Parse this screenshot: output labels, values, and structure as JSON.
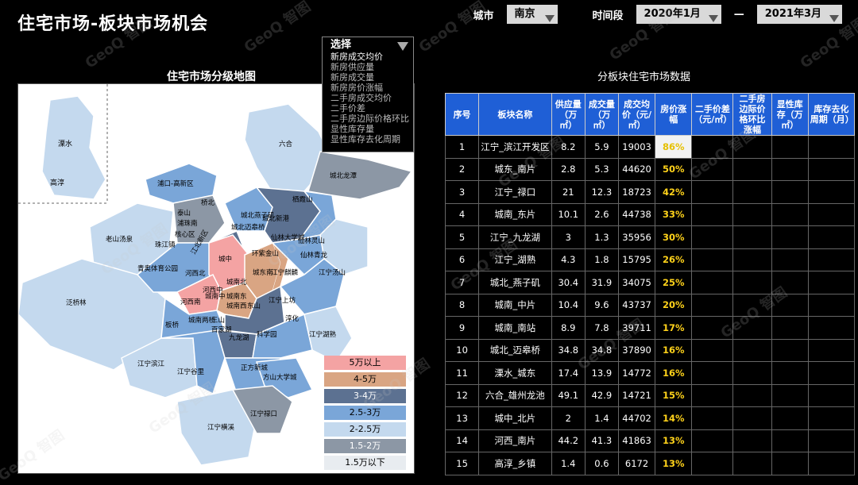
{
  "title": "住宅市场-板块市场机会",
  "filters": {
    "city_label": "城市",
    "city": "南京",
    "period_label": "时间段",
    "start": "2020年1月",
    "dash": "—",
    "end": "2021年3月"
  },
  "map": {
    "title": "住宅市场分级地图",
    "inset": {
      "a": "溧水",
      "b": "高淳"
    },
    "districts": [
      "六合",
      "城北龙潭",
      "浦口-高新区",
      "泰山",
      "桥北",
      "浦珠南",
      "核心区",
      "珠江镇",
      "老山汤泉",
      "青奥体育公园",
      "泛桥林",
      "城北迈皋桥",
      "城北燕子矶",
      "城北新港",
      "栖霞山",
      "仙林大学城",
      "仙林灵山",
      "仙林青龙",
      "环紫金山",
      "城中",
      "河西北",
      "河西中",
      "城南北",
      "城东南",
      "河西南",
      "城南中",
      "城南东",
      "城南西",
      "东山",
      "江宁麒麟",
      "江宁上坊",
      "江宁汤山",
      "板桥",
      "城南两桥",
      "三山",
      "百家湖",
      "九龙湖",
      "科学园",
      "淳化",
      "江宁湖熟",
      "江宁滨江",
      "江宁谷里",
      "正方新城",
      "方山大学城",
      "江宁横溪",
      "江宁禄口",
      "江北新区"
    ]
  },
  "select_panel": {
    "header": "选择",
    "options": [
      "新房成交均价",
      "新房供应量",
      "新房成交量",
      "新房房价涨幅",
      "二手房成交均价",
      "二手价差",
      "二手房边际价格环比",
      "显性库存量",
      "显性库存去化周期"
    ],
    "selected": 0
  },
  "legend": [
    {
      "label": "5万以上",
      "color": "#f4a3a3",
      "text": "#000"
    },
    {
      "label": "4-5万",
      "color": "#d9a583",
      "text": "#000"
    },
    {
      "label": "3-4万",
      "color": "#5c7191",
      "text": "#fff"
    },
    {
      "label": "2.5-3万",
      "color": "#7aa6d8",
      "text": "#000"
    },
    {
      "label": "2-2.5万",
      "color": "#c4d9ee",
      "text": "#000"
    },
    {
      "label": "1.5-2万",
      "color": "#8c97a5",
      "text": "#fff"
    },
    {
      "label": "1.5万以下",
      "color": "#e8ecf0",
      "text": "#000"
    }
  ],
  "table": {
    "title": "分板块住宅市场数据",
    "headers": [
      "序号",
      "板块名称",
      "供应量（万㎡）",
      "成交量（万㎡）",
      "成交均价（元/㎡）",
      "房价涨幅",
      "二手价差（元/㎡）",
      "二手房边际价格环比涨幅",
      "显性库存（万㎡）",
      "库存去化周期（月）"
    ],
    "rows": [
      [
        "1",
        "江宁_滨江开发区",
        "8.2",
        "5.9",
        "19003",
        "86%"
      ],
      [
        "2",
        "城东_南片",
        "2.8",
        "5.3",
        "44620",
        "50%"
      ],
      [
        "3",
        "江宁_禄口",
        "21",
        "12.3",
        "18723",
        "42%"
      ],
      [
        "4",
        "城南_东片",
        "10.1",
        "2.6",
        "44738",
        "33%"
      ],
      [
        "5",
        "江宁_九龙湖",
        "3",
        "1.3",
        "35956",
        "30%"
      ],
      [
        "6",
        "江宁_湖熟",
        "4.3",
        "1.8",
        "15795",
        "26%"
      ],
      [
        "7",
        "城北_燕子矶",
        "30.4",
        "31.9",
        "34075",
        "25%"
      ],
      [
        "8",
        "城南_中片",
        "10.4",
        "9.6",
        "43737",
        "20%"
      ],
      [
        "9",
        "城南_南站",
        "8.9",
        "7.8",
        "39711",
        "17%"
      ],
      [
        "10",
        "城北_迈皋桥",
        "34.8",
        "34.8",
        "37890",
        "16%"
      ],
      [
        "11",
        "溧水_城东",
        "17.4",
        "13.9",
        "14772",
        "16%"
      ],
      [
        "12",
        "六合_雄州龙池",
        "49.1",
        "42.9",
        "14721",
        "15%"
      ],
      [
        "13",
        "城中_北片",
        "2",
        "1.4",
        "44702",
        "14%"
      ],
      [
        "14",
        "河西_南片",
        "44.2",
        "41.3",
        "41863",
        "13%"
      ],
      [
        "15",
        "高淳_乡镇",
        "1.4",
        "0.6",
        "6172",
        "13%"
      ]
    ]
  },
  "watermark": "GeoQ 智图"
}
